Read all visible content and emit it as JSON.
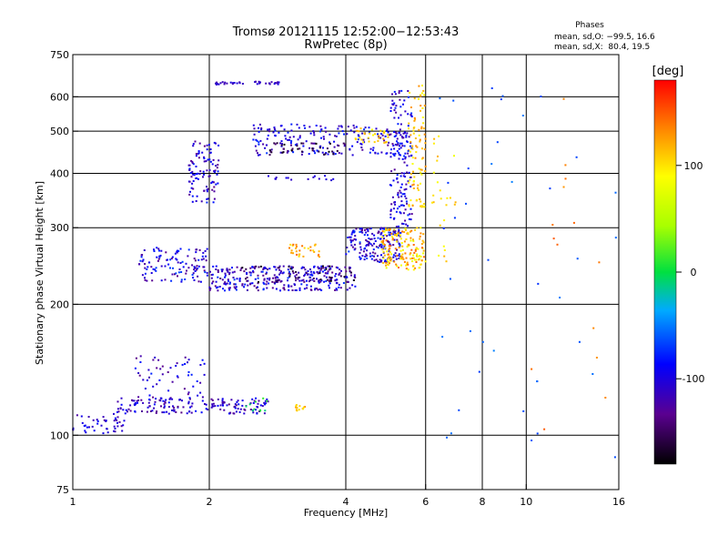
{
  "chart_data": [
    {
      "type": "scatter",
      "title": "Tromsø 20121115 12:52:00−12:53:43",
      "subtitle": "RwPretec (8p)",
      "xlabel": "Frequency [MHz]",
      "ylabel": "Stationary phase Virtual Height [km]",
      "x_scale": "log",
      "y_scale": "log",
      "xlim": [
        1,
        16
      ],
      "ylim": [
        75,
        750
      ],
      "x_ticks": [
        {
          "value": 1,
          "label": "1"
        },
        {
          "value": 2,
          "label": "2"
        },
        {
          "value": 4,
          "label": "4"
        },
        {
          "value": 6,
          "label": "6"
        },
        {
          "value": 8,
          "label": "8"
        },
        {
          "value": 10,
          "label": "10"
        },
        {
          "value": 16,
          "label": "16"
        }
      ],
      "y_ticks": [
        {
          "value": 75,
          "label": "75"
        },
        {
          "value": 100,
          "label": "100"
        },
        {
          "value": 200,
          "label": "200"
        },
        {
          "value": 300,
          "label": "300"
        },
        {
          "value": 400,
          "label": "400"
        },
        {
          "value": 500,
          "label": "500"
        },
        {
          "value": 600,
          "label": "600"
        },
        {
          "value": 750,
          "label": "750"
        }
      ],
      "grid": true,
      "stats": {
        "header": "Phases",
        "line_o": "mean, sd,O: −99.5, 16.6",
        "line_x": "mean, sd,X:  80.4, 19.5"
      },
      "color_scale": {
        "label": "[deg]",
        "range": [
          -180,
          180
        ],
        "ticks": [
          {
            "value": 100,
            "label": "100"
          },
          {
            "value": 0,
            "label": "0"
          },
          {
            "value": -100,
            "label": "-100"
          }
        ]
      },
      "point_groups": [
        {
          "f": [
            1.0,
            1.3
          ],
          "h": [
            100,
            112
          ],
          "phase": -105,
          "count": 45,
          "spread": 4
        },
        {
          "f": [
            1.25,
            2.7
          ],
          "h": [
            112,
            122
          ],
          "phase": -110,
          "count": 170,
          "spread": 5
        },
        {
          "f": [
            1.35,
            2.0
          ],
          "h": [
            120,
            155
          ],
          "phase": -105,
          "count": 60,
          "spread": 5
        },
        {
          "f": [
            2.4,
            2.7
          ],
          "h": [
            112,
            122
          ],
          "phase": 0,
          "count": 10,
          "spread": 3
        },
        {
          "f": [
            3.1,
            3.3
          ],
          "h": [
            113,
            118
          ],
          "phase": 115,
          "count": 12,
          "spread": 3
        },
        {
          "f": [
            1.4,
            2.0
          ],
          "h": [
            225,
            270
          ],
          "phase": -100,
          "count": 120,
          "spread": 6
        },
        {
          "f": [
            2.0,
            4.2
          ],
          "h": [
            215,
            245
          ],
          "phase": -105,
          "count": 300,
          "spread": 6
        },
        {
          "f": [
            2.3,
            4.2
          ],
          "h": [
            225,
            245
          ],
          "phase": -150,
          "count": 60,
          "spread": 5
        },
        {
          "f": [
            3.0,
            3.5
          ],
          "h": [
            255,
            275
          ],
          "phase": 120,
          "count": 30,
          "spread": 4
        },
        {
          "f": [
            4.0,
            5.3
          ],
          "h": [
            250,
            300
          ],
          "phase": -100,
          "count": 180,
          "spread": 6
        },
        {
          "f": [
            4.8,
            6.0
          ],
          "h": [
            240,
            300
          ],
          "phase": 110,
          "count": 160,
          "spread": 6
        },
        {
          "f": [
            5.0,
            5.6
          ],
          "h": [
            300,
            620
          ],
          "phase": -100,
          "count": 150,
          "spread": 5
        },
        {
          "f": [
            5.5,
            6.0
          ],
          "h": [
            330,
            640
          ],
          "phase": 110,
          "count": 90,
          "spread": 4
        },
        {
          "f": [
            2.5,
            5.5
          ],
          "h": [
            440,
            520
          ],
          "phase": -100,
          "count": 200,
          "spread": 5
        },
        {
          "f": [
            2.7,
            4.0
          ],
          "h": [
            440,
            470
          ],
          "phase": -160,
          "count": 40,
          "spread": 4
        },
        {
          "f": [
            4.2,
            5.0
          ],
          "h": [
            470,
            510
          ],
          "phase": 105,
          "count": 30,
          "spread": 3
        },
        {
          "f": [
            1.8,
            2.1
          ],
          "h": [
            340,
            480
          ],
          "phase": -105,
          "count": 100,
          "spread": 5
        },
        {
          "f": [
            2.05,
            2.85
          ],
          "h": [
            640,
            650
          ],
          "phase": -110,
          "count": 35,
          "spread": 2
        },
        {
          "f": [
            2.7,
            3.8
          ],
          "h": [
            385,
            395
          ],
          "phase": -105,
          "count": 15,
          "spread": 2
        },
        {
          "f": [
            6.2,
            7.0
          ],
          "h": [
            250,
            500
          ],
          "phase": 100,
          "count": 25,
          "spread": 3
        },
        {
          "f": [
            6.3,
            16.0
          ],
          "h": [
            80,
            650
          ],
          "phase": -60,
          "count": 40,
          "spread": 2
        },
        {
          "f": [
            9.0,
            15.0
          ],
          "h": [
            100,
            650
          ],
          "phase": 140,
          "count": 14,
          "spread": 2
        }
      ]
    }
  ]
}
